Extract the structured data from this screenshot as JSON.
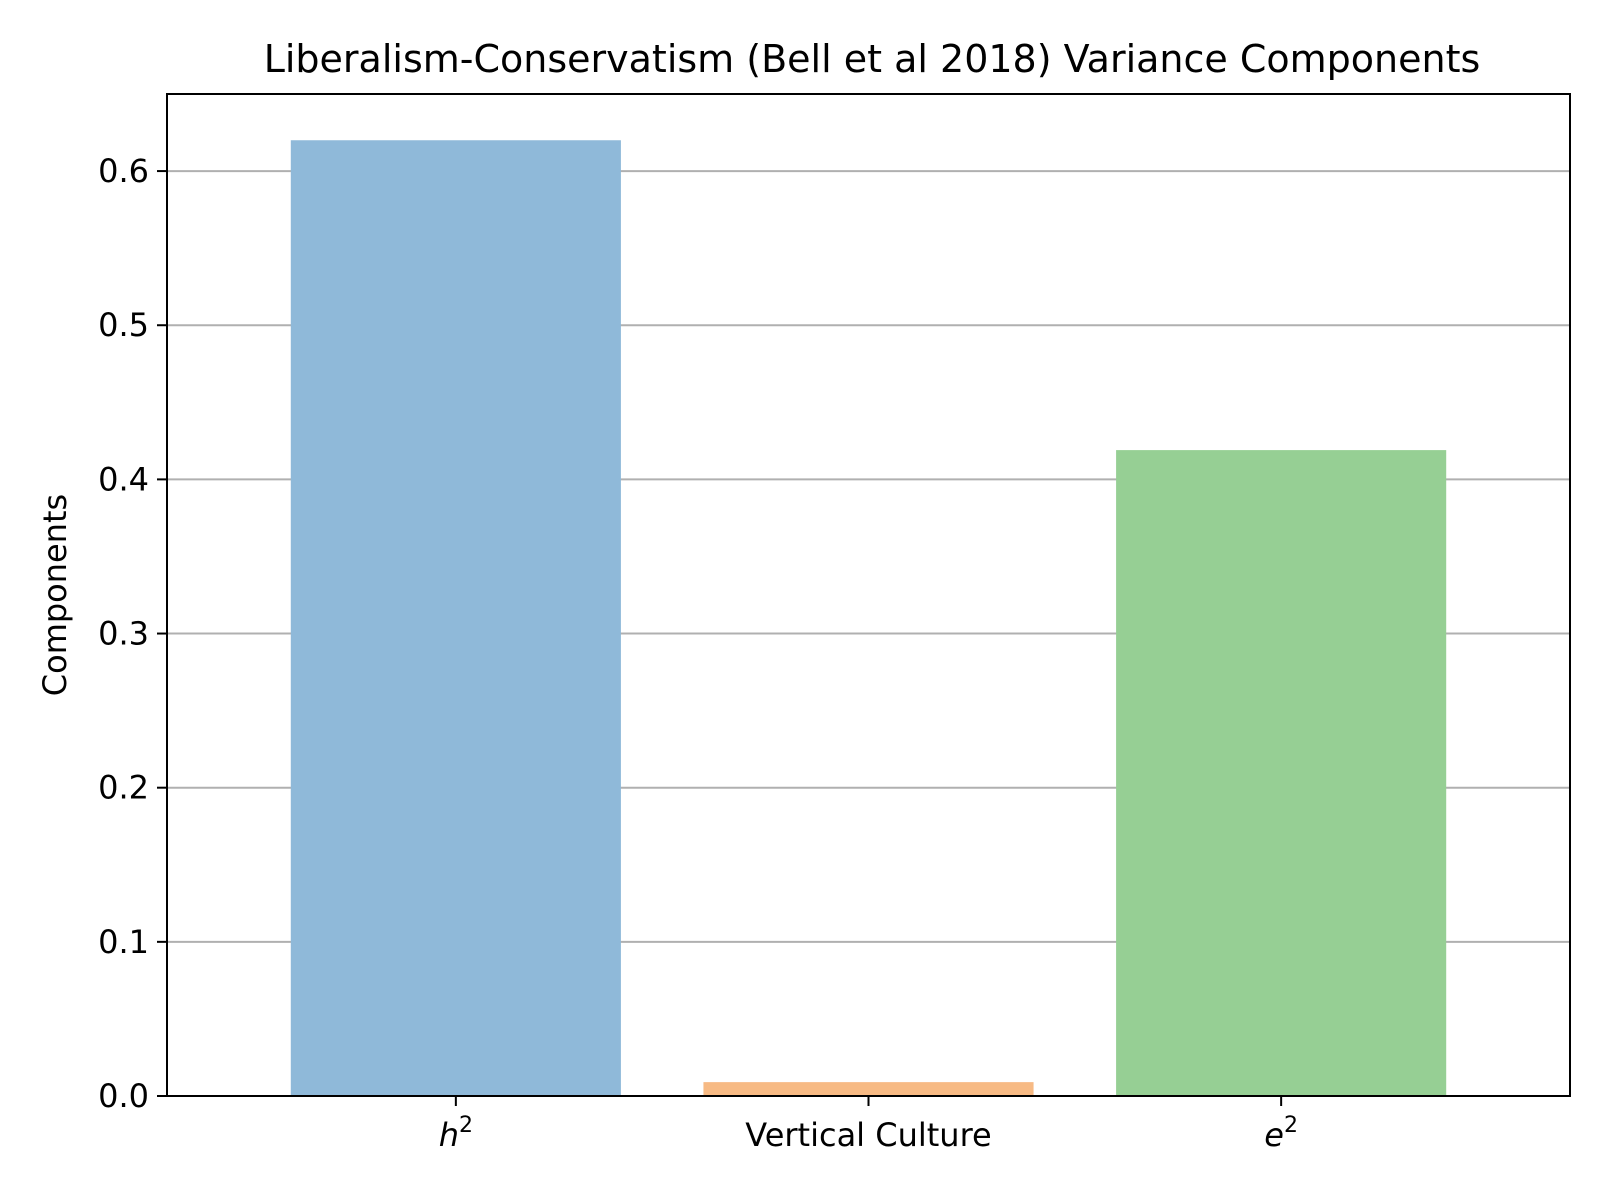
{
  "chart_data": {
    "type": "bar",
    "title": "Liberalism-Conservatism (Bell et al 2018) Variance Components",
    "ylabel": "Components",
    "xlabel": "",
    "categories": [
      {
        "base": "h",
        "sup": "2",
        "italic": true
      },
      {
        "base": "Vertical Culture",
        "sup": "",
        "italic": false
      },
      {
        "base": "e",
        "sup": "2",
        "italic": true
      }
    ],
    "values": [
      0.62,
      0.009,
      0.419
    ],
    "colors": [
      "#8fb9d9",
      "#f7ba84",
      "#96cf94"
    ],
    "ylim": [
      0,
      0.65
    ],
    "yticks": [
      0.0,
      0.1,
      0.2,
      0.3,
      0.4,
      0.5,
      0.6
    ],
    "ytick_labels": [
      "0.0",
      "0.1",
      "0.2",
      "0.3",
      "0.4",
      "0.5",
      "0.6"
    ],
    "grid": "y",
    "legend": "none"
  }
}
